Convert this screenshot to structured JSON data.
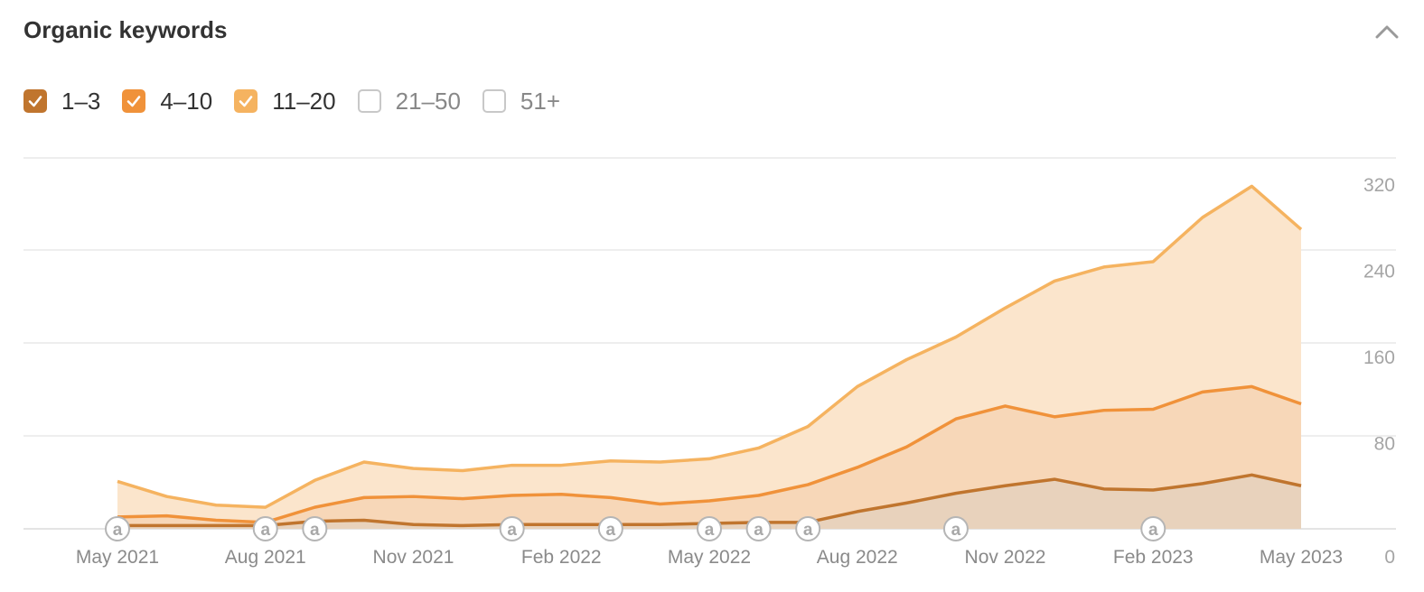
{
  "panel": {
    "title": "Organic keywords",
    "collapse_icon": "chevron-up-icon"
  },
  "legend": [
    {
      "label": "1–3",
      "checked": true,
      "color": "#c0752e"
    },
    {
      "label": "4–10",
      "checked": true,
      "color": "#f0923a"
    },
    {
      "label": "11–20",
      "checked": true,
      "color": "#f5b360"
    },
    {
      "label": "21–50",
      "checked": false,
      "color": "#c8c8c8"
    },
    {
      "label": "51+",
      "checked": false,
      "color": "#c8c8c8"
    }
  ],
  "annotation_marker": "a",
  "chart_data": {
    "type": "area",
    "stacked": true,
    "x": [
      "2021-05",
      "2021-06",
      "2021-07",
      "2021-08",
      "2021-09",
      "2021-10",
      "2021-11",
      "2021-12",
      "2022-01",
      "2022-02",
      "2022-03",
      "2022-04",
      "2022-05",
      "2022-06",
      "2022-07",
      "2022-08",
      "2022-09",
      "2022-10",
      "2022-11",
      "2022-12",
      "2023-01",
      "2023-02",
      "2023-03",
      "2023-04",
      "2023-05"
    ],
    "x_tick_labels": [
      "May 2021",
      "Aug 2021",
      "Nov 2021",
      "Feb 2022",
      "May 2022",
      "Aug 2022",
      "Nov 2022",
      "Feb 2023",
      "May 2023"
    ],
    "x_tick_dates": [
      "2021-05",
      "2021-08",
      "2021-11",
      "2022-02",
      "2022-05",
      "2022-08",
      "2022-11",
      "2023-02",
      "2023-05"
    ],
    "y_ticks": [
      0,
      80,
      160,
      240,
      320
    ],
    "ylim": [
      0,
      320
    ],
    "grid": true,
    "series": [
      {
        "name": "1–3",
        "color": "#c0752e",
        "fill": "#e8d2bc",
        "cumulative": [
          3,
          3,
          3,
          3,
          7,
          8,
          4,
          3,
          4,
          4,
          4,
          4,
          5,
          6,
          6,
          16,
          24,
          33,
          40,
          46,
          37,
          36,
          42,
          50,
          40
        ]
      },
      {
        "name": "4–10",
        "color": "#f0923a",
        "fill": "#f7d7b8",
        "cumulative": [
          11,
          12,
          8,
          6,
          20,
          29,
          30,
          28,
          31,
          32,
          29,
          23,
          26,
          31,
          41,
          57,
          76,
          102,
          114,
          104,
          110,
          111,
          127,
          132,
          116
        ]
      },
      {
        "name": "11–20",
        "color": "#f5b360",
        "fill": "#fbe5cc",
        "cumulative": [
          44,
          30,
          22,
          20,
          45,
          62,
          56,
          54,
          59,
          59,
          63,
          62,
          65,
          75,
          95,
          132,
          157,
          178,
          205,
          230,
          243,
          248,
          289,
          318,
          278
        ]
      }
    ],
    "annotations_x": [
      "2021-05",
      "2021-08",
      "2021-09",
      "2022-01",
      "2022-03",
      "2022-05",
      "2022-06",
      "2022-07",
      "2022-10",
      "2023-02"
    ]
  }
}
